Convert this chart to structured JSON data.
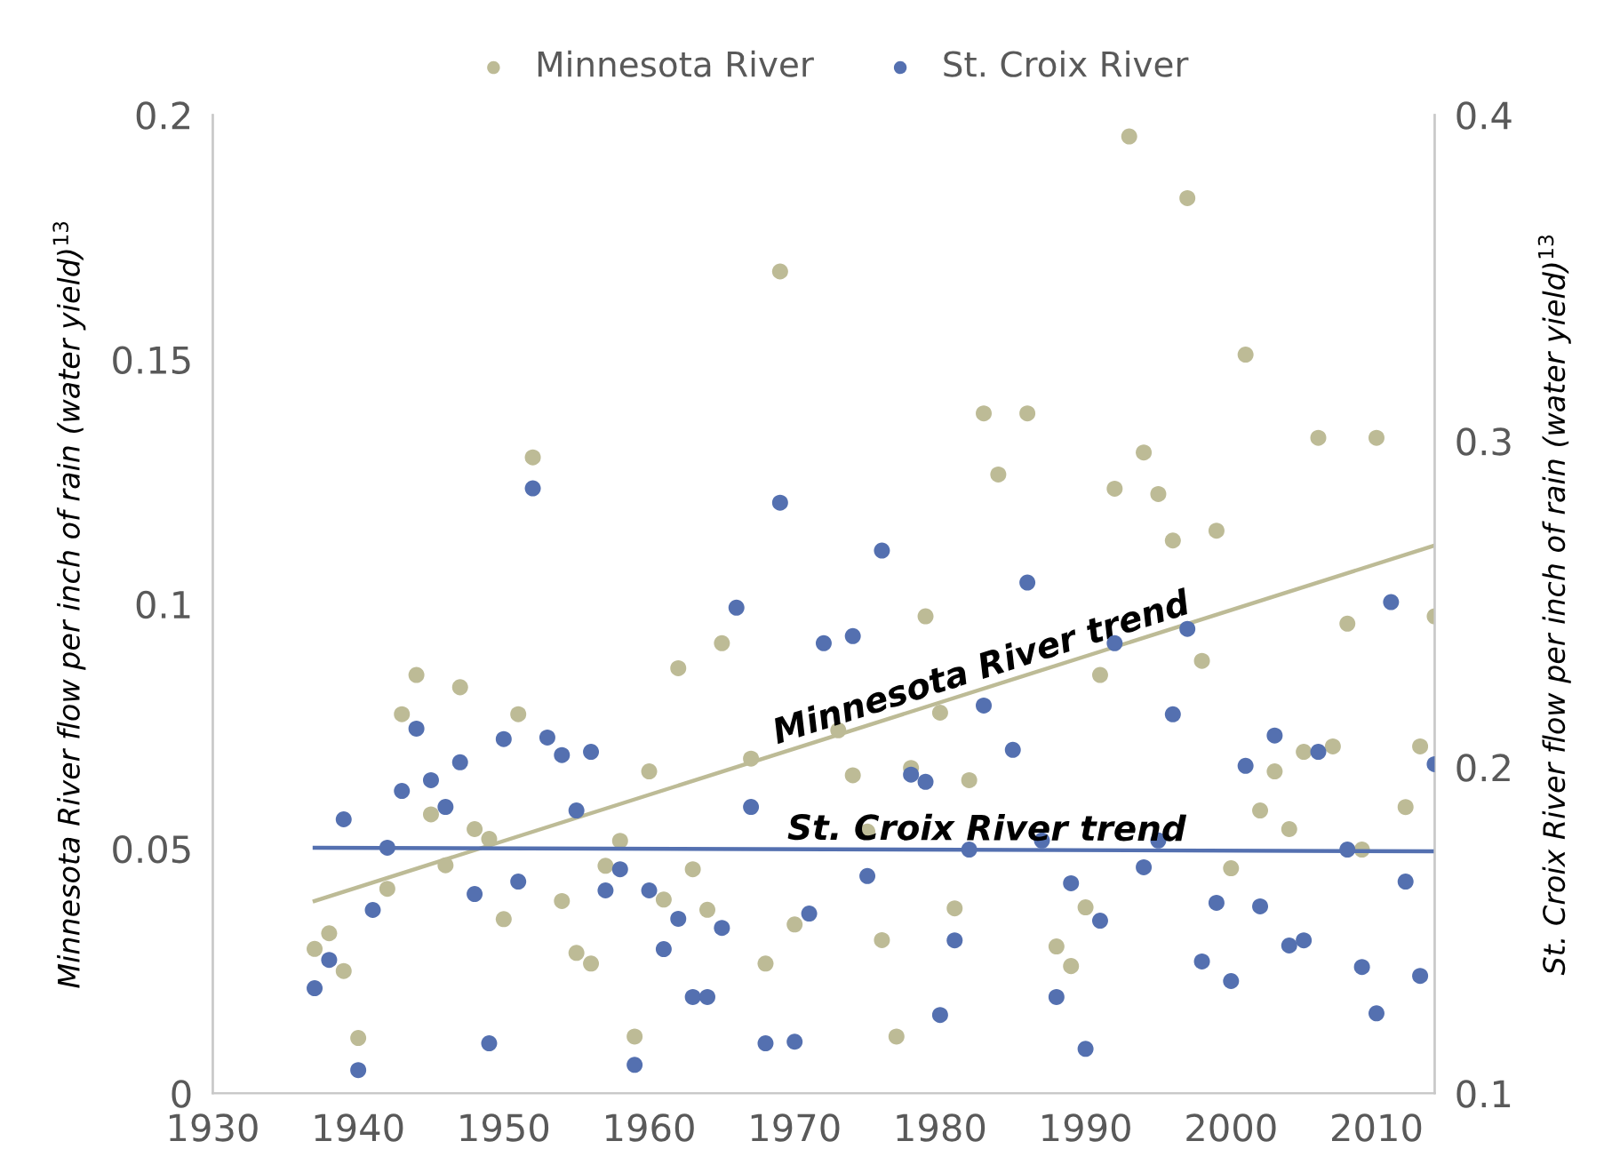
{
  "chart_data": {
    "type": "scatter",
    "ylabel": "Minnesota River flow per inch of rain (water yield)$^{13}$",
    "y2label": "St. Croix River flow per inch of rain (water yield)$^{13}$",
    "xlim": [
      1930,
      2014
    ],
    "xticks": [
      1930,
      1940,
      1950,
      1960,
      1970,
      1980,
      1990,
      2000,
      2010
    ],
    "ylim": [
      0,
      0.2
    ],
    "yticks": [
      0,
      0.05,
      0.1,
      0.15,
      0.2
    ],
    "y2lim": [
      0.1,
      0.4
    ],
    "y2ticks": [
      0.1,
      0.2,
      0.3,
      0.4
    ],
    "legend": "top",
    "grid": false,
    "series": [
      {
        "name": "Minnesota River",
        "color": "#bdbb96",
        "marker": "circle",
        "x": [
          1937,
          1938,
          1939,
          1940,
          1942,
          1943,
          1944,
          1945,
          1946,
          1947,
          1948,
          1949,
          1950,
          1951,
          1952,
          1954,
          1955,
          1956,
          1957,
          1958,
          1959,
          1960,
          1961,
          1962,
          1963,
          1964,
          1965,
          1967,
          1968,
          1969,
          1970,
          1973,
          1974,
          1975,
          1976,
          1977,
          1978,
          1979,
          1980,
          1981,
          1982,
          1983,
          1984,
          1986,
          1988,
          1989,
          1990,
          1991,
          1992,
          1993,
          1994,
          1995,
          1996,
          1997,
          1998,
          1999,
          2000,
          2001,
          2002,
          2003,
          2004,
          2005,
          2006,
          2007,
          2008,
          2009,
          2010,
          2012,
          2013,
          2014
        ],
        "values": [
          0.0295,
          0.0327,
          0.025,
          0.0113,
          0.0418,
          0.0775,
          0.0855,
          0.057,
          0.0466,
          0.083,
          0.054,
          0.052,
          0.0356,
          0.0775,
          0.13,
          0.0393,
          0.0287,
          0.0265,
          0.0465,
          0.0516,
          0.0116,
          0.0658,
          0.0396,
          0.0869,
          0.0458,
          0.0375,
          0.092,
          0.0684,
          0.0265,
          0.168,
          0.0345,
          0.0742,
          0.065,
          0.0535,
          0.0313,
          0.0116,
          0.0665,
          0.0975,
          0.0778,
          0.0378,
          0.064,
          0.139,
          0.1265,
          0.139,
          0.03,
          0.026,
          0.038,
          0.0855,
          0.1236,
          0.1956,
          0.131,
          0.1225,
          0.113,
          0.183,
          0.0884,
          0.115,
          0.046,
          0.151,
          0.0578,
          0.0658,
          0.054,
          0.0698,
          0.134,
          0.0709,
          0.096,
          0.0498,
          0.134,
          0.0585,
          0.0709,
          0.0975
        ]
      },
      {
        "name": "St. Croix River",
        "color": "#5470b0",
        "marker": "circle",
        "axis": "y2",
        "x": [
          1937,
          1938,
          1939,
          1940,
          1941,
          1942,
          1943,
          1944,
          1945,
          1946,
          1947,
          1948,
          1949,
          1950,
          1951,
          1952,
          1953,
          1954,
          1955,
          1956,
          1957,
          1958,
          1959,
          1960,
          1961,
          1962,
          1963,
          1964,
          1965,
          1966,
          1967,
          1968,
          1969,
          1970,
          1971,
          1972,
          1974,
          1975,
          1976,
          1978,
          1979,
          1980,
          1981,
          1982,
          1983,
          1985,
          1986,
          1987,
          1988,
          1989,
          1990,
          1991,
          1992,
          1994,
          1995,
          1996,
          1997,
          1998,
          1999,
          2000,
          2001,
          2002,
          2003,
          2004,
          2005,
          2006,
          2008,
          2009,
          2010,
          2011,
          2012,
          2013,
          2014
        ],
        "values": [
          0.1322,
          0.1409,
          0.184,
          0.1071,
          0.1562,
          0.1753,
          0.1927,
          0.2118,
          0.196,
          0.1878,
          0.2015,
          0.1611,
          0.1153,
          0.2086,
          0.1649,
          0.2855,
          0.2091,
          0.2037,
          0.1867,
          0.2047,
          0.1622,
          0.1687,
          0.1087,
          0.1622,
          0.1442,
          0.1535,
          0.1295,
          0.1295,
          0.1507,
          0.2489,
          0.1878,
          0.1153,
          0.2811,
          0.1158,
          0.1551,
          0.238,
          0.2402,
          0.1666,
          0.2664,
          0.1977,
          0.1955,
          0.124,
          0.1469,
          0.1747,
          0.2189,
          0.2053,
          0.2566,
          0.1775,
          0.1295,
          0.1644,
          0.1136,
          0.1529,
          0.238,
          0.1693,
          0.1775,
          0.2162,
          0.2424,
          0.1404,
          0.1584,
          0.1344,
          0.2004,
          0.1573,
          0.2097,
          0.1453,
          0.1469,
          0.2047,
          0.1747,
          0.1387,
          0.1245,
          0.2506,
          0.1649,
          0.136,
          0.2009
        ]
      },
      {
        "name": "Minnesota River trend",
        "type": "line",
        "color": "#bdbb96",
        "x": [
          1937,
          2014
        ],
        "values": [
          0.0393,
          0.112
        ]
      },
      {
        "name": "St. Croix River trend",
        "type": "line",
        "color": "#5470b0",
        "axis": "y2",
        "x": [
          1937,
          2014
        ],
        "values": [
          0.1753,
          0.1742
        ]
      }
    ]
  }
}
